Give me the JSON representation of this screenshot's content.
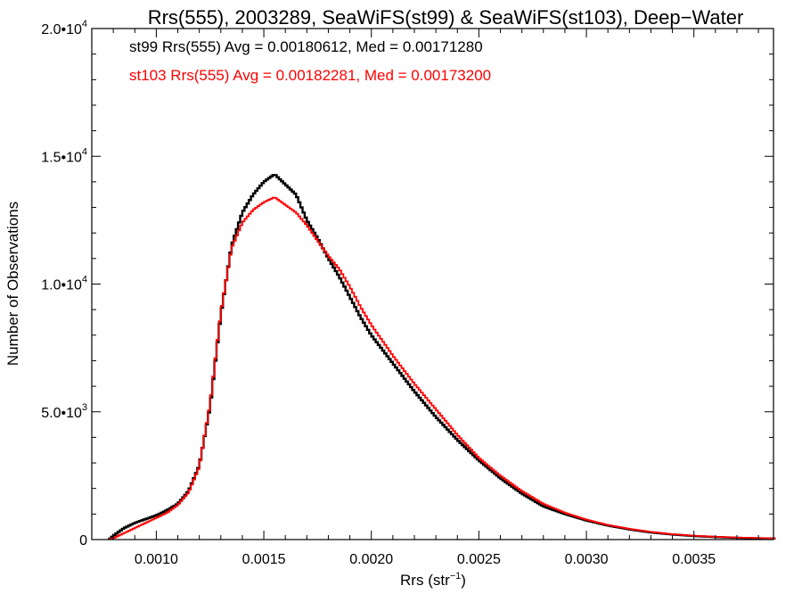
{
  "chart_data": {
    "type": "line",
    "title": "Rrs(555), 2003289, SeaWiFS(st99) & SeaWiFS(st103), Deep−Water",
    "xlabel": "Rrs (str",
    "xlabel_sup": "−1",
    "xlabel_end": ")",
    "ylabel": "Number of Observations",
    "xlim": [
      0.0007,
      0.00387
    ],
    "ylim": [
      0,
      20000
    ],
    "x_ticks": [
      {
        "value": 0.001,
        "label": "0.0010"
      },
      {
        "value": 0.0015,
        "label": "0.0015"
      },
      {
        "value": 0.002,
        "label": "0.0020"
      },
      {
        "value": 0.0025,
        "label": "0.0025"
      },
      {
        "value": 0.003,
        "label": "0.0030"
      },
      {
        "value": 0.0035,
        "label": "0.0035"
      }
    ],
    "y_ticks": [
      {
        "value": 0,
        "base": "0",
        "exp": ""
      },
      {
        "value": 5000,
        "base": "5.0•10",
        "exp": "3"
      },
      {
        "value": 10000,
        "base": "1.0•10",
        "exp": "4"
      },
      {
        "value": 15000,
        "base": "1.5•10",
        "exp": "4"
      },
      {
        "value": 20000,
        "base": "2.0•10",
        "exp": "4"
      }
    ],
    "legend": [
      {
        "text": "st99 Rrs(555) Avg = 0.00180612, Med = 0.00171280",
        "color": "#000000"
      },
      {
        "text": "st103 Rrs(555) Avg = 0.00182281, Med = 0.00173200",
        "color": "#ff0000"
      }
    ],
    "legend_position": "top-left",
    "series": [
      {
        "color": "#000000",
        "x": [
          0.00078,
          0.0008,
          0.00085,
          0.0009,
          0.00095,
          0.001,
          0.00105,
          0.0011,
          0.00115,
          0.0012,
          0.00125,
          0.0013,
          0.00135,
          0.0014,
          0.00145,
          0.0015,
          0.00155,
          0.0016,
          0.00165,
          0.0017,
          0.00175,
          0.0018,
          0.00185,
          0.0019,
          0.00195,
          0.002,
          0.0021,
          0.0022,
          0.0023,
          0.0024,
          0.0025,
          0.0026,
          0.0027,
          0.0028,
          0.0029,
          0.003,
          0.0031,
          0.0032,
          0.0033,
          0.0034,
          0.0035,
          0.0036,
          0.0037,
          0.0038,
          0.00387
        ],
        "y": [
          0,
          150,
          450,
          650,
          800,
          950,
          1150,
          1400,
          1900,
          2900,
          5200,
          8800,
          11500,
          12800,
          13500,
          14000,
          14300,
          13900,
          13500,
          12500,
          11800,
          11000,
          10300,
          9500,
          8700,
          8000,
          6900,
          5800,
          4800,
          3900,
          3100,
          2400,
          1800,
          1300,
          1000,
          750,
          550,
          400,
          280,
          200,
          140,
          100,
          70,
          50,
          40
        ]
      },
      {
        "color": "#ff0000",
        "x": [
          0.00078,
          0.0008,
          0.00085,
          0.0009,
          0.00095,
          0.001,
          0.00105,
          0.0011,
          0.00115,
          0.0012,
          0.00125,
          0.0013,
          0.00135,
          0.0014,
          0.00145,
          0.0015,
          0.00155,
          0.0016,
          0.00165,
          0.0017,
          0.00175,
          0.0018,
          0.00185,
          0.0019,
          0.00195,
          0.002,
          0.0021,
          0.0022,
          0.0023,
          0.0024,
          0.0025,
          0.0026,
          0.0027,
          0.0028,
          0.0029,
          0.003,
          0.0031,
          0.0032,
          0.0033,
          0.0034,
          0.0035,
          0.0036,
          0.0037,
          0.0038,
          0.00387
        ],
        "y": [
          0,
          50,
          250,
          450,
          650,
          850,
          1050,
          1350,
          1850,
          2850,
          5300,
          8900,
          11400,
          12400,
          12900,
          13200,
          13400,
          13100,
          12800,
          12300,
          11700,
          11100,
          10600,
          9900,
          9100,
          8400,
          7200,
          6100,
          5100,
          4100,
          3200,
          2500,
          1900,
          1400,
          1050,
          780,
          570,
          420,
          300,
          210,
          150,
          110,
          80,
          60,
          45
        ]
      }
    ]
  }
}
